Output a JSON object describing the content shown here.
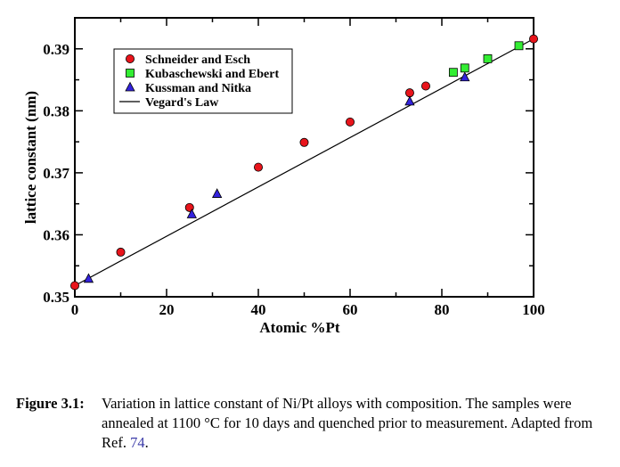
{
  "chart_data": {
    "type": "scatter",
    "xlabel": "Atomic %Pt",
    "ylabel": "lattice constant (nm)",
    "xlim": [
      0,
      100
    ],
    "ylim": [
      0.35,
      0.395
    ],
    "x_ticks": [
      0,
      20,
      40,
      60,
      80,
      100
    ],
    "y_ticks": [
      0.35,
      0.36,
      0.37,
      0.38,
      0.39
    ],
    "grid": false,
    "legend_position": "top-left",
    "series": [
      {
        "name": "Schneider and Esch",
        "marker": "circle",
        "color": "#e8141b",
        "points": [
          {
            "x": 0,
            "y": 0.3518
          },
          {
            "x": 10,
            "y": 0.3572
          },
          {
            "x": 25,
            "y": 0.3644
          },
          {
            "x": 40,
            "y": 0.3709
          },
          {
            "x": 50,
            "y": 0.3749
          },
          {
            "x": 60,
            "y": 0.3782
          },
          {
            "x": 73,
            "y": 0.3829
          },
          {
            "x": 76.5,
            "y": 0.384
          },
          {
            "x": 100,
            "y": 0.3916
          }
        ]
      },
      {
        "name": "Kubaschewski and Ebert",
        "marker": "square",
        "color": "#33ee33",
        "points": [
          {
            "x": 82.5,
            "y": 0.3862
          },
          {
            "x": 85,
            "y": 0.3869
          },
          {
            "x": 90,
            "y": 0.3884
          },
          {
            "x": 96.8,
            "y": 0.3905
          }
        ]
      },
      {
        "name": "Kussman and Nitka",
        "marker": "triangle",
        "color": "#3322dd",
        "points": [
          {
            "x": 3,
            "y": 0.3529
          },
          {
            "x": 25.5,
            "y": 0.3633
          },
          {
            "x": 31,
            "y": 0.3666
          },
          {
            "x": 73,
            "y": 0.3815
          },
          {
            "x": 85,
            "y": 0.3854
          }
        ]
      },
      {
        "name": "Vegard's Law",
        "marker": "line",
        "color": "#000000",
        "points": [
          {
            "x": 0,
            "y": 0.3518
          },
          {
            "x": 100,
            "y": 0.3916
          }
        ]
      }
    ]
  },
  "caption": {
    "label": "Figure 3.1:",
    "text": "Variation in lattice constant of Ni/Pt alloys with composition. The samples were annealed at 1100 °C for 10 days and quenched prior to measurement. Adapted from Ref. ",
    "ref": "74",
    "end": "."
  }
}
